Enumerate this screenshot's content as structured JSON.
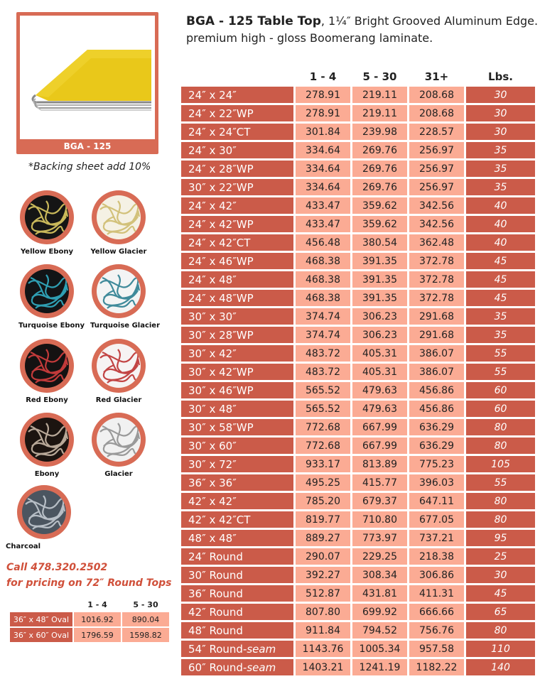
{
  "product": {
    "caption": "BGA - 125",
    "backing_note": "*Backing sheet add 10%"
  },
  "title": {
    "bold": "BGA - 125 Table Top",
    "rest": ", 1¼″ Bright Grooved Aluminum Edge.",
    "line2": "premium high - gloss Boomerang laminate."
  },
  "swatches": [
    {
      "name": "Yellow Ebony",
      "bg": "#151515",
      "line": "#c9b85a"
    },
    {
      "name": "Yellow Glacier",
      "bg": "#f5f1e4",
      "line": "#d2c17a"
    },
    {
      "name": "Turquoise Ebony",
      "bg": "#121416",
      "line": "#2f9fb3"
    },
    {
      "name": "Turquoise Glacier",
      "bg": "#f3f4f4",
      "line": "#3f8a9a"
    },
    {
      "name": "Red Ebony",
      "bg": "#141212",
      "line": "#c23a3a"
    },
    {
      "name": "Red Glacier",
      "bg": "#f6f3f3",
      "line": "#c24444"
    },
    {
      "name": "Ebony",
      "bg": "#1c1410",
      "line": "#b8a898"
    },
    {
      "name": "Glacier",
      "bg": "#f1f1f1",
      "line": "#9a9a9a"
    },
    {
      "name": "Charcoal",
      "bg": "#4b5560",
      "line": "#b7bec6"
    }
  ],
  "call": {
    "prefix": "Call ",
    "phone": "478.320.2502",
    "line2a": "for pricing on 72″ Round ",
    "line2b": "Tops"
  },
  "oval": {
    "headers": [
      "1 - 4",
      "5 - 30"
    ],
    "rows": [
      {
        "size": "36″ x 48″ Oval",
        "p1": "1016.92",
        "p2": "890.04"
      },
      {
        "size": "36″ x 60″ Oval",
        "p1": "1796.59",
        "p2": "1598.82"
      }
    ]
  },
  "table": {
    "headers": [
      "1 - 4",
      "5 - 30",
      "31+",
      "Lbs."
    ],
    "rows": [
      {
        "size": "24″ x 24″",
        "p1": "278.91",
        "p2": "219.11",
        "p3": "208.68",
        "lbs": "30"
      },
      {
        "size": "24″ x 22″WP",
        "p1": "278.91",
        "p2": "219.11",
        "p3": "208.68",
        "lbs": "30"
      },
      {
        "size": "24″ x 24″CT",
        "p1": "301.84",
        "p2": "239.98",
        "p3": "228.57",
        "lbs": "30"
      },
      {
        "size": "24″ x 30″",
        "p1": "334.64",
        "p2": "269.76",
        "p3": "256.97",
        "lbs": "35"
      },
      {
        "size": "24″ x 28″WP",
        "p1": "334.64",
        "p2": "269.76",
        "p3": "256.97",
        "lbs": "35"
      },
      {
        "size": "30″ x 22″WP",
        "p1": "334.64",
        "p2": "269.76",
        "p3": "256.97",
        "lbs": "35"
      },
      {
        "size": "24″ x 42″",
        "p1": "433.47",
        "p2": "359.62",
        "p3": "342.56",
        "lbs": "40"
      },
      {
        "size": "24″ x 42″WP",
        "p1": "433.47",
        "p2": "359.62",
        "p3": "342.56",
        "lbs": "40"
      },
      {
        "size": "24″ x 42″CT",
        "p1": "456.48",
        "p2": "380.54",
        "p3": "362.48",
        "lbs": "40"
      },
      {
        "size": "24″ x 46″WP",
        "p1": "468.38",
        "p2": "391.35",
        "p3": "372.78",
        "lbs": "45"
      },
      {
        "size": "24″ x 48″",
        "p1": "468.38",
        "p2": "391.35",
        "p3": "372.78",
        "lbs": "45"
      },
      {
        "size": "24″ x 48″WP",
        "p1": "468.38",
        "p2": "391.35",
        "p3": "372.78",
        "lbs": "45"
      },
      {
        "size": "30″ x 30″",
        "p1": "374.74",
        "p2": "306.23",
        "p3": "291.68",
        "lbs": "35"
      },
      {
        "size": "30″ x 28″WP",
        "p1": "374.74",
        "p2": "306.23",
        "p3": "291.68",
        "lbs": "35"
      },
      {
        "size": "30″ x 42″",
        "p1": "483.72",
        "p2": "405.31",
        "p3": "386.07",
        "lbs": "55"
      },
      {
        "size": "30″ x 42″WP",
        "p1": "483.72",
        "p2": "405.31",
        "p3": "386.07",
        "lbs": "55"
      },
      {
        "size": "30″ x 46″WP",
        "p1": "565.52",
        "p2": "479.63",
        "p3": "456.86",
        "lbs": "60"
      },
      {
        "size": "30″ x 48″",
        "p1": "565.52",
        "p2": "479.63",
        "p3": "456.86",
        "lbs": "60"
      },
      {
        "size": "30″ x 58″WP",
        "p1": "772.68",
        "p2": "667.99",
        "p3": "636.29",
        "lbs": "80"
      },
      {
        "size": "30″ x 60″",
        "p1": "772.68",
        "p2": "667.99",
        "p3": "636.29",
        "lbs": "80"
      },
      {
        "size": "30″ x 72″",
        "p1": "933.17",
        "p2": "813.89",
        "p3": "775.23",
        "lbs": "105"
      },
      {
        "size": "36″ x 36″",
        "p1": "495.25",
        "p2": "415.77",
        "p3": "396.03",
        "lbs": "55"
      },
      {
        "size": "42″ x 42″",
        "p1": "785.20",
        "p2": "679.37",
        "p3": "647.11",
        "lbs": "80"
      },
      {
        "size": "42″ x 42″CT",
        "p1": "819.77",
        "p2": "710.80",
        "p3": "677.05",
        "lbs": "80"
      },
      {
        "size": "48″ x 48″",
        "p1": "889.27",
        "p2": "773.97",
        "p3": "737.21",
        "lbs": "95"
      },
      {
        "size": "24″ Round",
        "p1": "290.07",
        "p2": "229.25",
        "p3": "218.38",
        "lbs": "25"
      },
      {
        "size": "30″ Round",
        "p1": "392.27",
        "p2": "308.34",
        "p3": "306.86",
        "lbs": "30"
      },
      {
        "size": "36″ Round",
        "p1": "512.87",
        "p2": "431.81",
        "p3": "411.31",
        "lbs": "45"
      },
      {
        "size": "42″ Round",
        "p1": "807.80",
        "p2": "699.92",
        "p3": "666.66",
        "lbs": "65"
      },
      {
        "size": "48″ Round",
        "p1": "911.84",
        "p2": "794.52",
        "p3": "756.76",
        "lbs": "80"
      },
      {
        "size": "54″ Round-seam",
        "p1": "1143.76",
        "p2": "1005.34",
        "p3": "957.58",
        "lbs": "110"
      },
      {
        "size": "60″ Round-seam",
        "p1": "1403.21",
        "p2": "1241.19",
        "p3": "1182.22",
        "lbs": "140"
      }
    ]
  }
}
